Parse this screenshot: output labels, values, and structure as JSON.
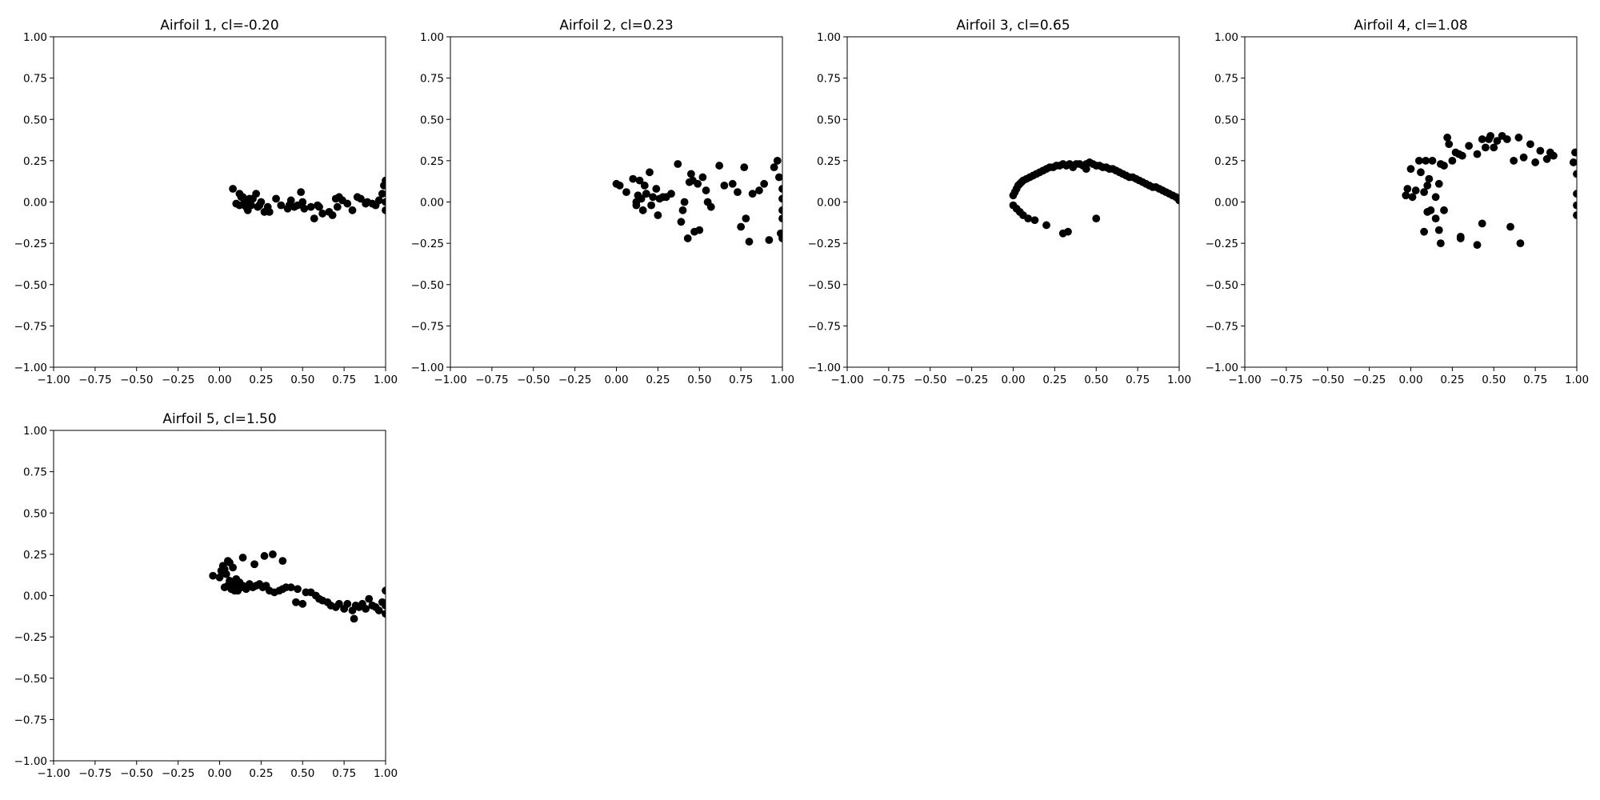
{
  "chart_data": [
    {
      "type": "scatter",
      "title": "Airfoil 1, cl=-0.20",
      "xlim": [
        -1,
        1
      ],
      "ylim": [
        -1,
        1
      ],
      "xticks": [
        "−1.00",
        "−0.75",
        "−0.50",
        "−0.25",
        "0.00",
        "0.25",
        "0.50",
        "0.75",
        "1.00"
      ],
      "yticks": [
        "−1.00",
        "−0.75",
        "−0.50",
        "−0.25",
        "0.00",
        "0.25",
        "0.50",
        "0.75",
        "1.00"
      ],
      "grid": false,
      "marker_color": "#000000",
      "x": [
        0.1,
        0.12,
        0.13,
        0.15,
        0.16,
        0.17,
        0.18,
        0.2,
        0.22,
        0.23,
        0.25,
        0.27,
        0.29,
        0.34,
        0.37,
        0.41,
        0.43,
        0.45,
        0.47,
        0.49,
        0.51,
        0.55,
        0.57,
        0.59,
        0.62,
        0.68,
        0.7,
        0.71,
        0.74,
        0.77,
        0.8,
        0.83,
        0.85,
        0.89,
        0.92,
        0.94,
        0.96,
        0.98,
        0.99,
        1.0,
        1.0,
        1.0,
        0.12,
        0.19,
        0.3,
        0.42,
        0.6,
        0.66,
        0.08,
        0.14,
        0.24,
        0.5,
        0.72,
        0.88
      ],
      "y": [
        -0.01,
        0.05,
        0.03,
        0.0,
        -0.03,
        -0.05,
        0.02,
        0.02,
        0.05,
        -0.03,
        0.0,
        -0.06,
        -0.03,
        0.02,
        -0.02,
        -0.04,
        0.01,
        -0.03,
        -0.02,
        0.06,
        -0.04,
        -0.03,
        -0.1,
        -0.02,
        -0.07,
        -0.08,
        0.02,
        -0.03,
        0.01,
        -0.01,
        -0.05,
        0.03,
        0.02,
        0.0,
        -0.01,
        -0.02,
        0.01,
        0.05,
        0.1,
        0.13,
        -0.05,
        0.0,
        -0.02,
        -0.02,
        -0.06,
        -0.02,
        -0.03,
        -0.06,
        0.08,
        0.03,
        -0.02,
        0.0,
        0.03,
        -0.01
      ]
    },
    {
      "type": "scatter",
      "title": "Airfoil 2, cl=0.23",
      "xlim": [
        -1,
        1
      ],
      "ylim": [
        -1,
        1
      ],
      "xticks": [
        "−1.00",
        "−0.75",
        "−0.50",
        "−0.25",
        "0.00",
        "0.25",
        "0.50",
        "0.75",
        "1.00"
      ],
      "yticks": [
        "−1.00",
        "−0.75",
        "−0.50",
        "−0.25",
        "0.00",
        "0.25",
        "0.50",
        "0.75",
        "1.00"
      ],
      "grid": false,
      "marker_color": "#000000",
      "x": [
        0.0,
        0.02,
        0.06,
        0.1,
        0.12,
        0.13,
        0.14,
        0.15,
        0.16,
        0.17,
        0.18,
        0.2,
        0.21,
        0.22,
        0.24,
        0.25,
        0.26,
        0.28,
        0.3,
        0.33,
        0.37,
        0.39,
        0.41,
        0.43,
        0.44,
        0.45,
        0.46,
        0.47,
        0.49,
        0.5,
        0.52,
        0.55,
        0.57,
        0.62,
        0.65,
        0.7,
        0.73,
        0.75,
        0.77,
        0.78,
        0.8,
        0.82,
        0.86,
        0.89,
        0.92,
        0.95,
        0.97,
        0.98,
        0.99,
        1.0,
        1.0,
        1.0,
        1.0,
        1.0,
        0.18,
        0.12,
        0.4,
        0.54
      ],
      "y": [
        0.11,
        0.1,
        0.06,
        0.14,
        -0.02,
        0.04,
        0.13,
        0.02,
        -0.05,
        0.1,
        0.05,
        0.18,
        -0.02,
        0.03,
        0.08,
        -0.08,
        0.02,
        0.03,
        0.03,
        0.05,
        0.23,
        -0.12,
        0.0,
        -0.22,
        0.12,
        0.17,
        0.13,
        -0.18,
        0.11,
        -0.17,
        0.15,
        0.0,
        -0.03,
        0.22,
        0.1,
        0.11,
        0.06,
        -0.15,
        0.21,
        -0.1,
        -0.24,
        0.05,
        0.07,
        0.11,
        -0.23,
        0.21,
        0.25,
        0.15,
        -0.19,
        0.08,
        -0.05,
        -0.1,
        -0.22,
        0.02,
        0.05,
        0.0,
        -0.05,
        0.07
      ]
    },
    {
      "type": "scatter",
      "title": "Airfoil 3, cl=0.65",
      "xlim": [
        -1,
        1
      ],
      "ylim": [
        -1,
        1
      ],
      "xticks": [
        "−1.00",
        "−0.75",
        "−0.50",
        "−0.25",
        "0.00",
        "0.25",
        "0.50",
        "0.75",
        "1.00"
      ],
      "yticks": [
        "−1.00",
        "−0.75",
        "−0.50",
        "−0.25",
        "0.00",
        "0.25",
        "0.50",
        "0.75",
        "1.00"
      ],
      "grid": false,
      "marker_color": "#000000",
      "x": [
        0.0,
        0.01,
        0.02,
        0.03,
        0.04,
        0.05,
        0.06,
        0.08,
        0.1,
        0.12,
        0.14,
        0.16,
        0.18,
        0.2,
        0.22,
        0.24,
        0.26,
        0.28,
        0.3,
        0.32,
        0.34,
        0.36,
        0.38,
        0.4,
        0.42,
        0.44,
        0.46,
        0.48,
        0.5,
        0.52,
        0.54,
        0.56,
        0.58,
        0.6,
        0.62,
        0.64,
        0.66,
        0.68,
        0.7,
        0.72,
        0.74,
        0.76,
        0.78,
        0.8,
        0.82,
        0.84,
        0.86,
        0.88,
        0.9,
        0.92,
        0.94,
        0.96,
        0.98,
        1.0,
        0.0,
        0.02,
        0.04,
        0.06,
        0.09,
        0.13,
        0.2,
        0.3,
        0.33,
        0.5,
        0.36,
        0.44
      ],
      "y": [
        0.04,
        0.06,
        0.08,
        0.1,
        0.11,
        0.12,
        0.13,
        0.14,
        0.15,
        0.16,
        0.17,
        0.18,
        0.19,
        0.2,
        0.21,
        0.21,
        0.22,
        0.22,
        0.23,
        0.22,
        0.23,
        0.22,
        0.23,
        0.23,
        0.22,
        0.23,
        0.24,
        0.23,
        0.22,
        0.22,
        0.21,
        0.21,
        0.2,
        0.2,
        0.19,
        0.18,
        0.17,
        0.16,
        0.15,
        0.15,
        0.14,
        0.13,
        0.12,
        0.11,
        0.1,
        0.09,
        0.09,
        0.08,
        0.07,
        0.06,
        0.05,
        0.04,
        0.03,
        0.01,
        -0.02,
        -0.04,
        -0.06,
        -0.08,
        -0.1,
        -0.11,
        -0.14,
        -0.19,
        -0.18,
        -0.1,
        0.21,
        0.2
      ]
    },
    {
      "type": "scatter",
      "title": "Airfoil 4, cl=1.08",
      "xlim": [
        -1,
        1
      ],
      "ylim": [
        -1,
        1
      ],
      "xticks": [
        "−1.00",
        "−0.75",
        "−0.50",
        "−0.25",
        "0.00",
        "0.25",
        "0.50",
        "0.75",
        "1.00"
      ],
      "yticks": [
        "−1.00",
        "−0.75",
        "−0.50",
        "−0.25",
        "0.00",
        "0.25",
        "0.50",
        "0.75",
        "1.00"
      ],
      "grid": false,
      "marker_color": "#000000",
      "x": [
        -0.03,
        -0.02,
        0.0,
        0.01,
        0.03,
        0.05,
        0.06,
        0.08,
        0.09,
        0.1,
        0.11,
        0.13,
        0.15,
        0.17,
        0.18,
        0.2,
        0.22,
        0.23,
        0.25,
        0.27,
        0.29,
        0.31,
        0.35,
        0.4,
        0.43,
        0.45,
        0.47,
        0.48,
        0.5,
        0.52,
        0.55,
        0.58,
        0.62,
        0.65,
        0.68,
        0.72,
        0.75,
        0.78,
        0.82,
        0.84,
        0.86,
        0.98,
        0.99,
        1.0,
        1.0,
        1.0,
        1.0,
        0.08,
        0.1,
        0.12,
        0.15,
        0.17,
        0.18,
        0.3,
        0.4,
        0.43,
        0.6,
        0.66,
        0.3,
        0.2
      ],
      "y": [
        0.04,
        0.08,
        0.2,
        0.03,
        0.07,
        0.25,
        0.18,
        0.06,
        0.25,
        0.1,
        0.14,
        0.25,
        0.03,
        0.11,
        0.23,
        0.22,
        0.39,
        0.35,
        0.25,
        0.3,
        0.29,
        0.28,
        0.34,
        0.29,
        0.38,
        0.33,
        0.38,
        0.4,
        0.33,
        0.37,
        0.4,
        0.38,
        0.25,
        0.39,
        0.27,
        0.35,
        0.24,
        0.31,
        0.26,
        0.3,
        0.28,
        0.24,
        0.3,
        0.17,
        0.05,
        -0.02,
        -0.08,
        -0.18,
        -0.06,
        -0.05,
        -0.1,
        -0.17,
        -0.25,
        -0.21,
        -0.26,
        -0.13,
        -0.15,
        -0.25,
        -0.22,
        -0.05
      ],
      "x2": [],
      "y2": []
    },
    {
      "type": "scatter",
      "title": "Airfoil 5, cl=1.50",
      "xlim": [
        -1,
        1
      ],
      "ylim": [
        -1,
        1
      ],
      "xticks": [
        "−1.00",
        "−0.75",
        "−0.50",
        "−0.25",
        "0.00",
        "0.25",
        "0.50",
        "0.75",
        "1.00"
      ],
      "yticks": [
        "−1.00",
        "−0.75",
        "−0.50",
        "−0.25",
        "0.00",
        "0.25",
        "0.50",
        "0.75",
        "1.00"
      ],
      "grid": false,
      "marker_color": "#000000",
      "x": [
        -0.04,
        0.0,
        0.01,
        0.02,
        0.03,
        0.04,
        0.05,
        0.06,
        0.07,
        0.08,
        0.09,
        0.1,
        0.11,
        0.12,
        0.13,
        0.14,
        0.16,
        0.18,
        0.2,
        0.22,
        0.24,
        0.26,
        0.28,
        0.3,
        0.33,
        0.36,
        0.38,
        0.4,
        0.43,
        0.46,
        0.47,
        0.5,
        0.52,
        0.55,
        0.58,
        0.6,
        0.62,
        0.65,
        0.67,
        0.7,
        0.72,
        0.75,
        0.77,
        0.8,
        0.82,
        0.84,
        0.86,
        0.88,
        0.9,
        0.92,
        0.94,
        0.96,
        0.98,
        1.0,
        1.0,
        1.0,
        0.03,
        0.06,
        0.14,
        0.21,
        0.27,
        0.32,
        0.38,
        0.05,
        0.09,
        0.81
      ],
      "y": [
        0.12,
        0.11,
        0.15,
        0.18,
        0.05,
        0.13,
        0.21,
        0.09,
        0.04,
        0.17,
        0.07,
        0.1,
        0.03,
        0.08,
        0.05,
        0.06,
        0.04,
        0.07,
        0.05,
        0.06,
        0.07,
        0.05,
        0.06,
        0.03,
        0.02,
        0.03,
        0.04,
        0.05,
        0.05,
        -0.04,
        0.04,
        -0.05,
        0.02,
        0.02,
        0.0,
        -0.02,
        -0.03,
        -0.04,
        -0.06,
        -0.07,
        -0.05,
        -0.08,
        -0.05,
        -0.09,
        -0.06,
        -0.07,
        -0.05,
        -0.08,
        -0.02,
        -0.06,
        -0.07,
        -0.09,
        -0.04,
        -0.11,
        0.03,
        -0.06,
        0.16,
        0.2,
        0.23,
        0.19,
        0.24,
        0.25,
        0.21,
        0.06,
        0.03,
        -0.14
      ]
    }
  ]
}
